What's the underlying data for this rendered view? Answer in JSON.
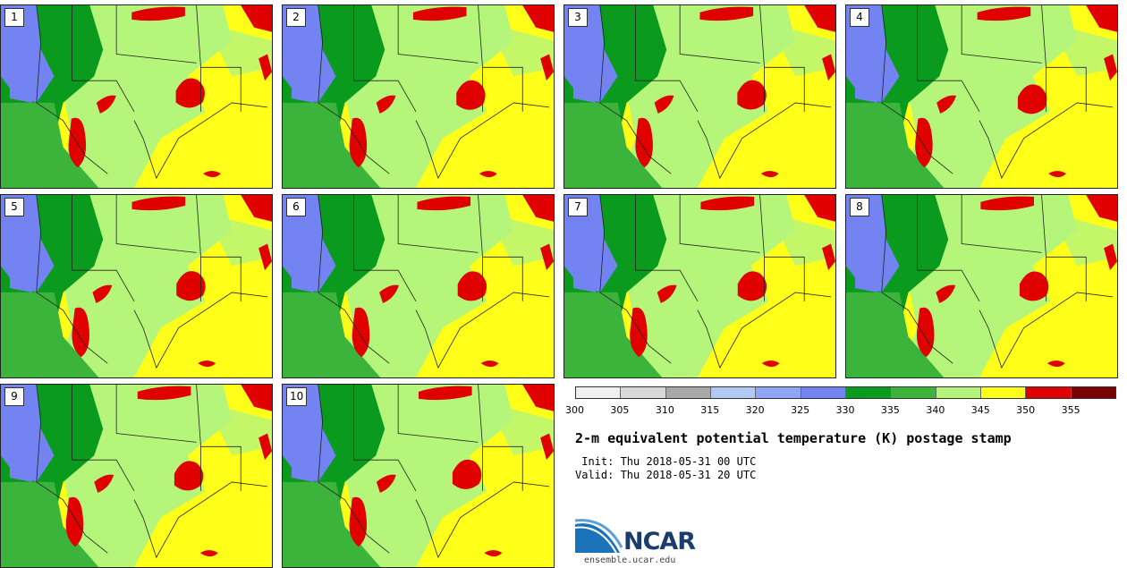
{
  "panels": [
    {
      "label": "1"
    },
    {
      "label": "2"
    },
    {
      "label": "3"
    },
    {
      "label": "4"
    },
    {
      "label": "5"
    },
    {
      "label": "6"
    },
    {
      "label": "7"
    },
    {
      "label": "8"
    },
    {
      "label": "9"
    },
    {
      "label": "10"
    }
  ],
  "colorbar": {
    "colors": [
      "#f0f0f0",
      "#d9d9d9",
      "#a8a8a8",
      "#b4c8f5",
      "#8ea6f5",
      "#7384f2",
      "#0a9a1e",
      "#3cb43c",
      "#b4f57a",
      "#ffff1a",
      "#e00000",
      "#7a0000"
    ],
    "ticks": [
      "300",
      "305",
      "310",
      "315",
      "320",
      "325",
      "330",
      "335",
      "340",
      "345",
      "350",
      "355"
    ]
  },
  "title": "2-m equivalent potential temperature (K) postage stamp",
  "init_line": " Init: Thu 2018-05-31 00 UTC",
  "valid_line": "Valid: Thu 2018-05-31 20 UTC",
  "logo": {
    "text": "NCAR",
    "url": "ensemble.ucar.edu"
  }
}
